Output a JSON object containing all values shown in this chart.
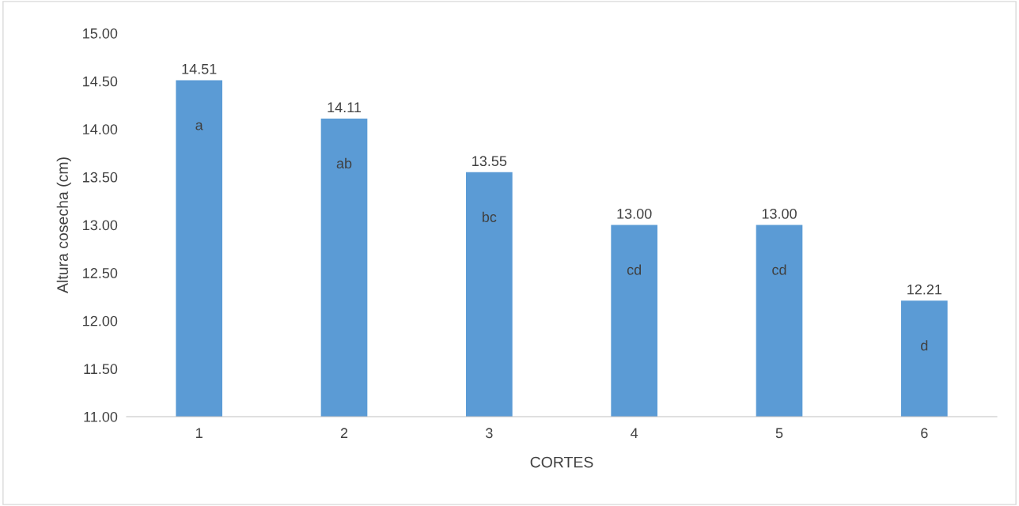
{
  "chart_data": {
    "type": "bar",
    "xlabel": "CORTES",
    "ylabel": "Altura cosecha (cm)",
    "categories": [
      "1",
      "2",
      "3",
      "4",
      "5",
      "6"
    ],
    "values": [
      14.51,
      14.11,
      13.55,
      13.0,
      13.0,
      12.21
    ],
    "value_labels": [
      "14.51",
      "14.11",
      "13.55",
      "13.00",
      "13.00",
      "12.21"
    ],
    "color": "#5b9bd5",
    "ylim": [
      11,
      15
    ],
    "yticks": [
      {
        "value": 11,
        "label": "11.00"
      },
      {
        "value": 11.5,
        "label": "11.50"
      },
      {
        "value": 12,
        "label": "12.00"
      },
      {
        "value": 12.5,
        "label": "12.50"
      },
      {
        "value": 13,
        "label": "13.00"
      },
      {
        "value": 13.5,
        "label": "13.50"
      },
      {
        "value": 14,
        "label": "14.00"
      },
      {
        "value": 14.5,
        "label": "14.50"
      },
      {
        "value": 15,
        "label": "15.00"
      }
    ],
    "grid": false,
    "legend": false,
    "annotations": [
      "a",
      "ab",
      "bc",
      "cd",
      "cd",
      "d"
    ]
  }
}
